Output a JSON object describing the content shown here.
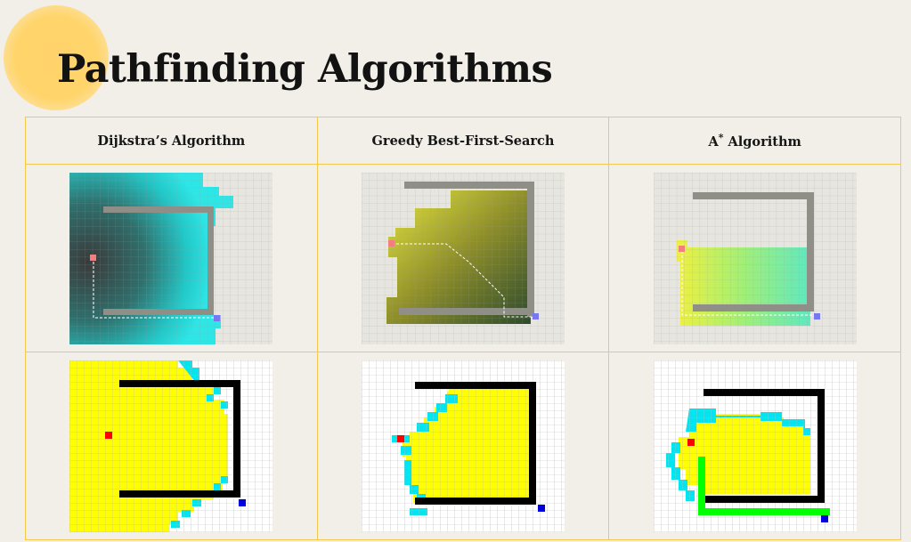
{
  "page": {
    "title": "Pathfinding Algorithms"
  },
  "columns": [
    {
      "label": "Dijkstra’s Algorithm",
      "sup": "",
      "label_rest": ""
    },
    {
      "label": "Greedy Best-First-Search",
      "sup": "",
      "label_rest": ""
    },
    {
      "label": "A",
      "sup": "*",
      "label_rest": " Algorithm"
    }
  ],
  "colors": {
    "border": "#f2c94c",
    "accent_blob": "#ffd36b",
    "start": "#ff0000",
    "goal": "#0000dd",
    "explored": "#ffff00",
    "frontier": "#00ffff",
    "wall": "#000000",
    "path": "#00ff00"
  },
  "images": [
    {
      "row": "grayscale-wall-demos",
      "alt": ""
    },
    {
      "row": "colored-grid-demos",
      "alt": ""
    }
  ]
}
